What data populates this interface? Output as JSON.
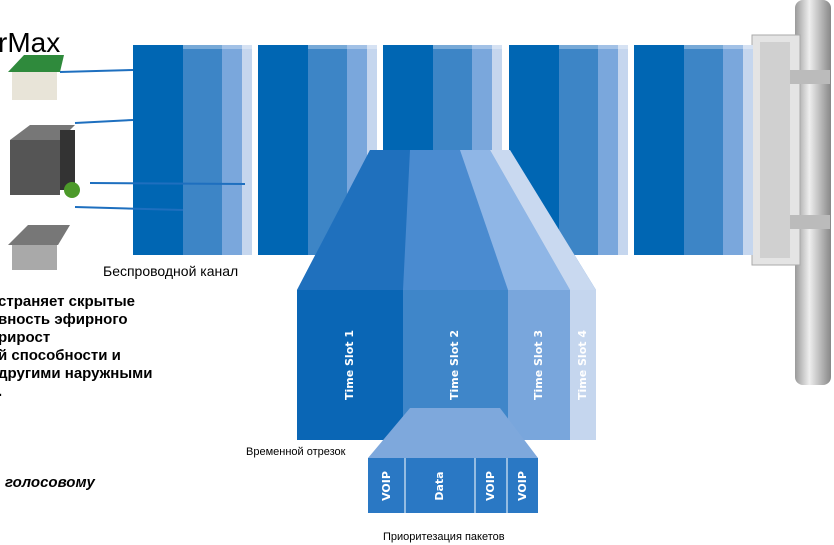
{
  "header": {
    "title": "rMax"
  },
  "labels": {
    "channel": "Беспроводной канал",
    "time_slot": "Временной отрезок",
    "packets": "Приоритезация пакетов"
  },
  "time_slots": [
    "Time Slot 1",
    "Time Slot 2",
    "Time Slot 3",
    "Time Slot 4"
  ],
  "packets": [
    "VOIP",
    "Data",
    "VOIP",
    "VOIP"
  ],
  "body_text": [
    "страняет скрытые",
    "вность эфирного",
    "рирост",
    "й способности и",
    "другими наружными",
    "."
  ],
  "italic_text": "голосовому"
}
